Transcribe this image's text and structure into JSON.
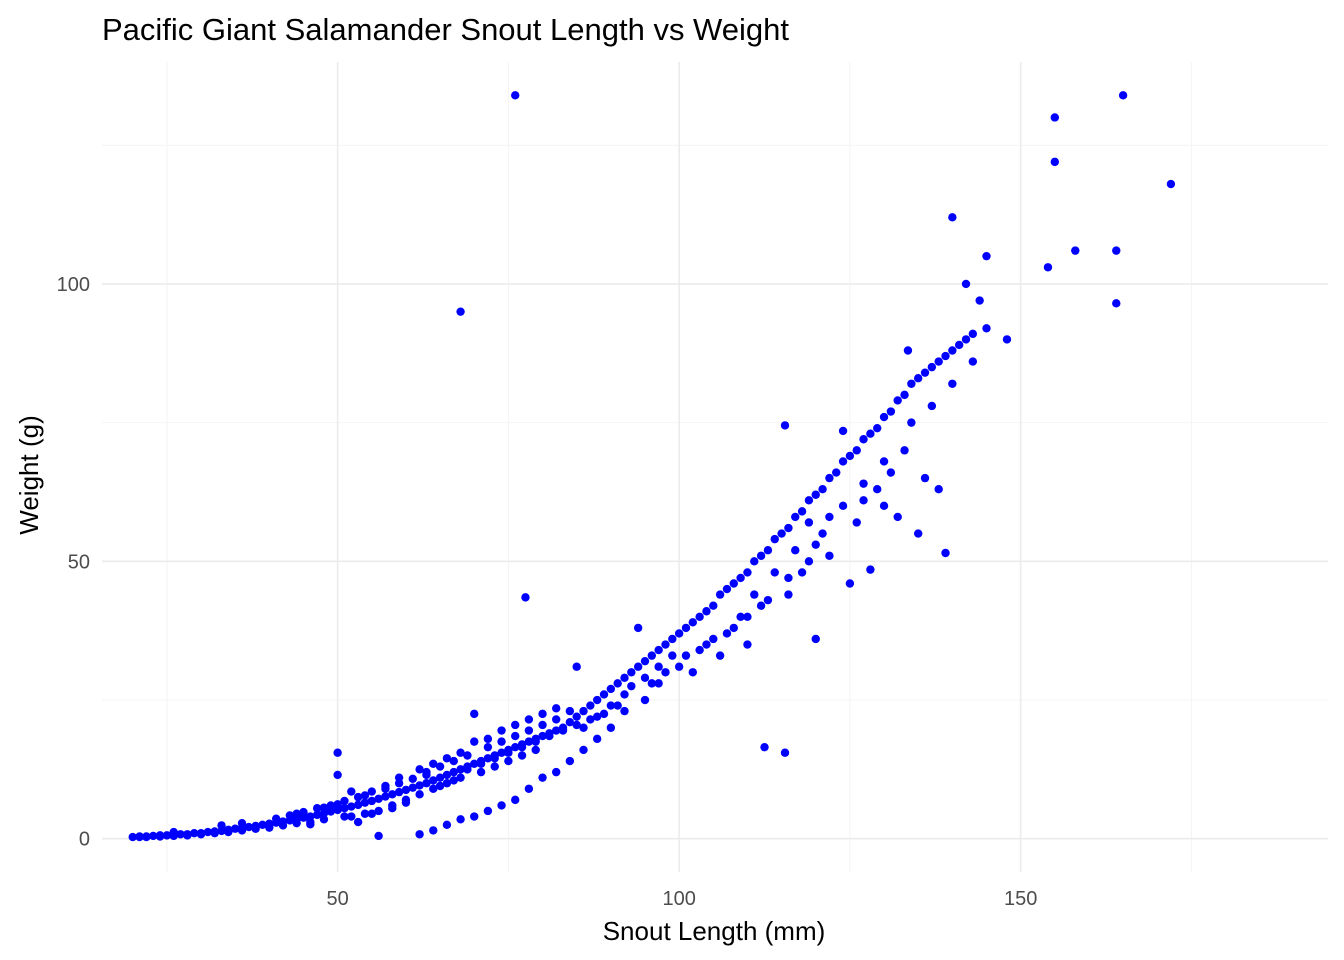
{
  "chart_data": {
    "type": "scatter",
    "title": "Pacific Giant Salamander Snout Length vs Weight",
    "xlabel": "Snout Length (mm)",
    "ylabel": "Weight (g)",
    "xlim": [
      15.5,
      195
    ],
    "ylim": [
      -6,
      140
    ],
    "x_ticks": [
      50,
      100,
      150
    ],
    "y_ticks": [
      0,
      50,
      100
    ],
    "grid": true,
    "legend": "none",
    "point_color": "#0000ff",
    "points": [
      [
        20,
        0.3
      ],
      [
        21,
        0.4
      ],
      [
        22,
        0.4
      ],
      [
        23,
        0.5
      ],
      [
        24,
        0.6
      ],
      [
        25,
        0.6
      ],
      [
        26,
        0.7
      ],
      [
        26,
        1.2
      ],
      [
        27,
        0.8
      ],
      [
        28,
        0.8
      ],
      [
        29,
        1.0
      ],
      [
        30,
        1.0
      ],
      [
        31,
        1.2
      ],
      [
        32,
        1.3
      ],
      [
        33,
        1.4
      ],
      [
        33,
        2.4
      ],
      [
        34,
        1.6
      ],
      [
        35,
        1.8
      ],
      [
        36,
        2.0
      ],
      [
        36,
        2.8
      ],
      [
        37,
        2.1
      ],
      [
        38,
        2.3
      ],
      [
        39,
        2.5
      ],
      [
        40,
        2.7
      ],
      [
        41,
        2.9
      ],
      [
        42,
        3.1
      ],
      [
        43,
        3.3
      ],
      [
        44,
        3.5
      ],
      [
        44,
        4.5
      ],
      [
        45,
        3.8
      ],
      [
        46,
        4.0
      ],
      [
        46,
        2.6
      ],
      [
        47,
        4.3
      ],
      [
        48,
        4.6
      ],
      [
        48,
        5.6
      ],
      [
        49,
        4.9
      ],
      [
        50,
        5.2
      ],
      [
        50,
        6.2
      ],
      [
        50,
        15.5
      ],
      [
        50,
        11.5
      ],
      [
        51,
        5.5
      ],
      [
        51,
        4.0
      ],
      [
        52,
        5.8
      ],
      [
        52,
        8.5
      ],
      [
        53,
        6.1
      ],
      [
        53,
        3.0
      ],
      [
        54,
        6.5
      ],
      [
        54,
        7.8
      ],
      [
        55,
        6.8
      ],
      [
        55,
        4.5
      ],
      [
        56,
        7.2
      ],
      [
        56,
        0.5
      ],
      [
        57,
        7.6
      ],
      [
        57,
        9.0
      ],
      [
        58,
        8.0
      ],
      [
        58,
        6.0
      ],
      [
        59,
        8.4
      ],
      [
        59,
        11.0
      ],
      [
        60,
        8.8
      ],
      [
        60,
        7.0
      ],
      [
        61,
        9.2
      ],
      [
        61,
        10.8
      ],
      [
        62,
        9.6
      ],
      [
        62,
        8.0
      ],
      [
        63,
        10.0
      ],
      [
        63,
        12.0
      ],
      [
        64,
        10.5
      ],
      [
        64,
        9.0
      ],
      [
        65,
        11.0
      ],
      [
        65,
        13.0
      ],
      [
        66,
        11.5
      ],
      [
        66,
        10.0
      ],
      [
        67,
        12.0
      ],
      [
        67,
        14.0
      ],
      [
        68,
        12.5
      ],
      [
        68,
        11.0
      ],
      [
        69,
        13.0
      ],
      [
        69,
        15.0
      ],
      [
        70,
        13.5
      ],
      [
        70,
        17.5
      ],
      [
        70,
        22.5
      ],
      [
        71,
        14.0
      ],
      [
        71,
        12.0
      ],
      [
        72,
        14.5
      ],
      [
        72,
        16.5
      ],
      [
        73,
        15.0
      ],
      [
        73,
        13.0
      ],
      [
        74,
        15.5
      ],
      [
        74,
        17.5
      ],
      [
        75,
        16.0
      ],
      [
        75,
        14.0
      ],
      [
        76,
        16.5
      ],
      [
        76,
        18.5
      ],
      [
        77,
        17.0
      ],
      [
        77,
        15.0
      ],
      [
        78,
        17.5
      ],
      [
        78,
        19.5
      ],
      [
        79,
        18.0
      ],
      [
        79,
        16.0
      ],
      [
        80,
        18.5
      ],
      [
        80,
        20.5
      ],
      [
        81,
        19.0
      ],
      [
        82,
        19.5
      ],
      [
        82,
        21.5
      ],
      [
        83,
        20.0
      ],
      [
        84,
        21.0
      ],
      [
        84,
        23.0
      ],
      [
        85,
        22.0
      ],
      [
        85,
        31.0
      ],
      [
        86,
        23.0
      ],
      [
        86,
        20.0
      ],
      [
        87,
        24.0
      ],
      [
        88,
        25.0
      ],
      [
        88,
        22.0
      ],
      [
        89,
        26.0
      ],
      [
        90,
        27.0
      ],
      [
        90,
        24.0
      ],
      [
        91,
        28.0
      ],
      [
        92,
        29.0
      ],
      [
        92,
        26.0
      ],
      [
        93,
        30.0
      ],
      [
        94,
        31.0
      ],
      [
        94,
        38.0
      ],
      [
        95,
        32.0
      ],
      [
        95,
        29.0
      ],
      [
        96,
        33.0
      ],
      [
        97,
        34.0
      ],
      [
        97,
        31.0
      ],
      [
        98,
        35.0
      ],
      [
        99,
        36.0
      ],
      [
        99,
        33.0
      ],
      [
        100,
        37.0
      ],
      [
        101,
        38.0
      ],
      [
        102,
        39.0
      ],
      [
        103,
        40.0
      ],
      [
        104,
        41.0
      ],
      [
        105,
        42.0
      ],
      [
        106,
        44.0
      ],
      [
        107,
        45.0
      ],
      [
        108,
        46.0
      ],
      [
        109,
        47.0
      ],
      [
        110,
        48.0
      ],
      [
        111,
        50.0
      ],
      [
        112,
        51.0
      ],
      [
        113,
        52.0
      ],
      [
        114,
        54.0
      ],
      [
        115,
        55.0
      ],
      [
        116,
        56.0
      ],
      [
        117,
        58.0
      ],
      [
        118,
        59.0
      ],
      [
        119,
        61.0
      ],
      [
        120,
        62.0
      ],
      [
        121,
        63.0
      ],
      [
        122,
        65.0
      ],
      [
        123,
        66.0
      ],
      [
        124,
        68.0
      ],
      [
        125,
        69.0
      ],
      [
        126,
        70.0
      ],
      [
        127,
        72.0
      ],
      [
        128,
        73.0
      ],
      [
        129,
        74.0
      ],
      [
        130,
        76.0
      ],
      [
        131,
        77.0
      ],
      [
        132,
        79.0
      ],
      [
        133,
        80.0
      ],
      [
        134,
        82.0
      ],
      [
        135,
        83.0
      ],
      [
        136,
        84.0
      ],
      [
        137,
        85.0
      ],
      [
        138,
        86.0
      ],
      [
        139,
        87.0
      ],
      [
        140,
        88.0
      ],
      [
        141,
        89.0
      ],
      [
        142,
        90.0
      ],
      [
        143,
        91.0
      ],
      [
        145,
        92.0
      ],
      [
        148,
        90.0
      ],
      [
        133.5,
        88.0
      ],
      [
        140,
        112.0
      ],
      [
        142,
        100.0
      ],
      [
        145,
        105.0
      ],
      [
        144,
        97.0
      ],
      [
        155,
        130.0
      ],
      [
        155,
        122.0
      ],
      [
        165,
        134.0
      ],
      [
        172,
        118.0
      ],
      [
        154,
        103.0
      ],
      [
        158,
        106.0
      ],
      [
        164,
        106.0
      ],
      [
        164,
        96.5
      ],
      [
        76,
        134.0
      ],
      [
        68,
        95.0
      ],
      [
        77.5,
        43.5
      ],
      [
        112.5,
        16.5
      ],
      [
        115.5,
        15.5
      ],
      [
        115.5,
        74.5
      ],
      [
        124,
        73.5
      ],
      [
        139,
        51.5
      ],
      [
        128,
        48.5
      ],
      [
        120,
        36.0
      ],
      [
        125,
        46.0
      ],
      [
        122,
        51.0
      ],
      [
        102,
        30.0
      ],
      [
        106,
        33.0
      ],
      [
        110,
        35.0
      ],
      [
        108,
        38.0
      ],
      [
        112,
        42.0
      ],
      [
        116,
        44.0
      ],
      [
        118,
        48.0
      ],
      [
        120,
        53.0
      ],
      [
        126,
        57.0
      ],
      [
        130,
        60.0
      ],
      [
        132,
        58.0
      ],
      [
        135,
        55.0
      ],
      [
        136,
        65.0
      ],
      [
        138,
        63.0
      ],
      [
        133,
        70.0
      ],
      [
        131,
        66.0
      ],
      [
        129,
        63.0
      ],
      [
        127,
        61.0
      ],
      [
        122,
        58.0
      ],
      [
        119,
        57.0
      ],
      [
        117,
        52.0
      ],
      [
        114,
        48.0
      ],
      [
        111,
        44.0
      ],
      [
        109,
        40.0
      ],
      [
        105,
        36.0
      ],
      [
        103,
        34.0
      ],
      [
        100,
        31.0
      ],
      [
        97,
        28.0
      ],
      [
        95,
        25.0
      ],
      [
        92,
        23.0
      ],
      [
        90,
        20.0
      ],
      [
        88,
        18.0
      ],
      [
        86,
        16.0
      ],
      [
        84,
        14.0
      ],
      [
        82,
        12.0
      ],
      [
        80,
        11.0
      ],
      [
        78,
        9.0
      ],
      [
        76,
        7.0
      ],
      [
        74,
        6.0
      ],
      [
        72,
        5.0
      ],
      [
        70,
        4.0
      ],
      [
        68,
        3.5
      ],
      [
        66,
        2.5
      ],
      [
        64,
        1.5
      ],
      [
        62,
        0.8
      ],
      [
        60,
        6.5
      ],
      [
        58,
        5.5
      ],
      [
        56,
        5.0
      ],
      [
        54,
        4.5
      ],
      [
        52,
        4.0
      ],
      [
        48,
        3.5
      ],
      [
        46,
        3.0
      ],
      [
        44,
        2.8
      ],
      [
        42,
        2.4
      ],
      [
        40,
        2.0
      ],
      [
        38,
        1.8
      ],
      [
        36,
        1.5
      ],
      [
        34,
        1.2
      ],
      [
        32,
        1.0
      ],
      [
        30,
        0.8
      ],
      [
        28,
        0.6
      ],
      [
        26,
        0.5
      ],
      [
        24,
        0.4
      ],
      [
        22,
        0.3
      ],
      [
        21,
        0.3
      ],
      [
        63,
        11.5
      ],
      [
        65,
        9.5
      ],
      [
        67,
        10.5
      ],
      [
        69,
        12.5
      ],
      [
        71,
        13.5
      ],
      [
        73,
        14.5
      ],
      [
        75,
        15.5
      ],
      [
        77,
        16.5
      ],
      [
        79,
        17.5
      ],
      [
        81,
        18.5
      ],
      [
        83,
        19.5
      ],
      [
        85,
        20.5
      ],
      [
        87,
        21.5
      ],
      [
        89,
        22.5
      ],
      [
        91,
        24.0
      ],
      [
        93,
        27.5
      ],
      [
        96,
        28.0
      ],
      [
        98,
        30.0
      ],
      [
        101,
        33.0
      ],
      [
        104,
        35.0
      ],
      [
        107,
        37.0
      ],
      [
        110,
        40.0
      ],
      [
        113,
        43.0
      ],
      [
        116,
        47.0
      ],
      [
        119,
        50.0
      ],
      [
        121,
        55.0
      ],
      [
        124,
        60.0
      ],
      [
        127,
        64.0
      ],
      [
        130,
        68.0
      ],
      [
        134,
        75.0
      ],
      [
        137,
        78.0
      ],
      [
        140,
        82.0
      ],
      [
        143,
        86.0
      ],
      [
        62,
        12.5
      ],
      [
        64,
        13.5
      ],
      [
        66,
        14.5
      ],
      [
        68,
        15.5
      ],
      [
        72,
        18.0
      ],
      [
        74,
        19.5
      ],
      [
        76,
        20.5
      ],
      [
        78,
        21.5
      ],
      [
        80,
        22.5
      ],
      [
        82,
        23.5
      ],
      [
        59,
        10.0
      ],
      [
        57,
        9.5
      ],
      [
        55,
        8.5
      ],
      [
        53,
        7.5
      ],
      [
        51,
        6.8
      ],
      [
        49,
        6.0
      ],
      [
        47,
        5.5
      ],
      [
        45,
        4.8
      ],
      [
        43,
        4.2
      ],
      [
        41,
        3.6
      ]
    ]
  }
}
